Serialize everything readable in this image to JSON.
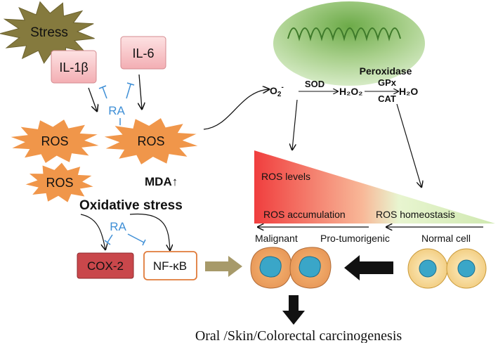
{
  "nodes": {
    "stress": "Stress",
    "il1b": "IL-1β",
    "il6": "IL-6",
    "ra_top": "RA",
    "ros": [
      "ROS",
      "ROS",
      "ROS"
    ],
    "mda": "MDA↑",
    "oxidative_stress": "Oxidative stress",
    "ra_bottom": "RA",
    "cox2": "COX-2",
    "nfkb": "NF-κB"
  },
  "mitochondria": {
    "o2": "O",
    "o2_sub": "2",
    "o2_sup": "-",
    "sod": "SOD",
    "h2o2": "H₂O₂",
    "peroxidase": "Peroxidase",
    "gpx": "GPx",
    "cat": "CAT",
    "h2o": "H₂O"
  },
  "gradient": {
    "ros_levels": "ROS levels",
    "ros_accumulation": "ROS accumulation",
    "ros_homeostasis": "ROS homeostasis",
    "stages": [
      "Malignant",
      "Pro-tumorigenic",
      "Normal cell"
    ]
  },
  "outcome": "Oral /Skin/Colorectal carcinogenesis",
  "colors": {
    "stress": "#857a3e",
    "ros": "#f0964a",
    "il_box": "#f8c3c6",
    "ra": "#3f8fd6",
    "cox2": "#c9474b",
    "nfkb_border": "#e07b3a",
    "mito": "#c6e0b2",
    "gradient_high": "#f04848",
    "gradient_low": "#d8f0c0"
  }
}
